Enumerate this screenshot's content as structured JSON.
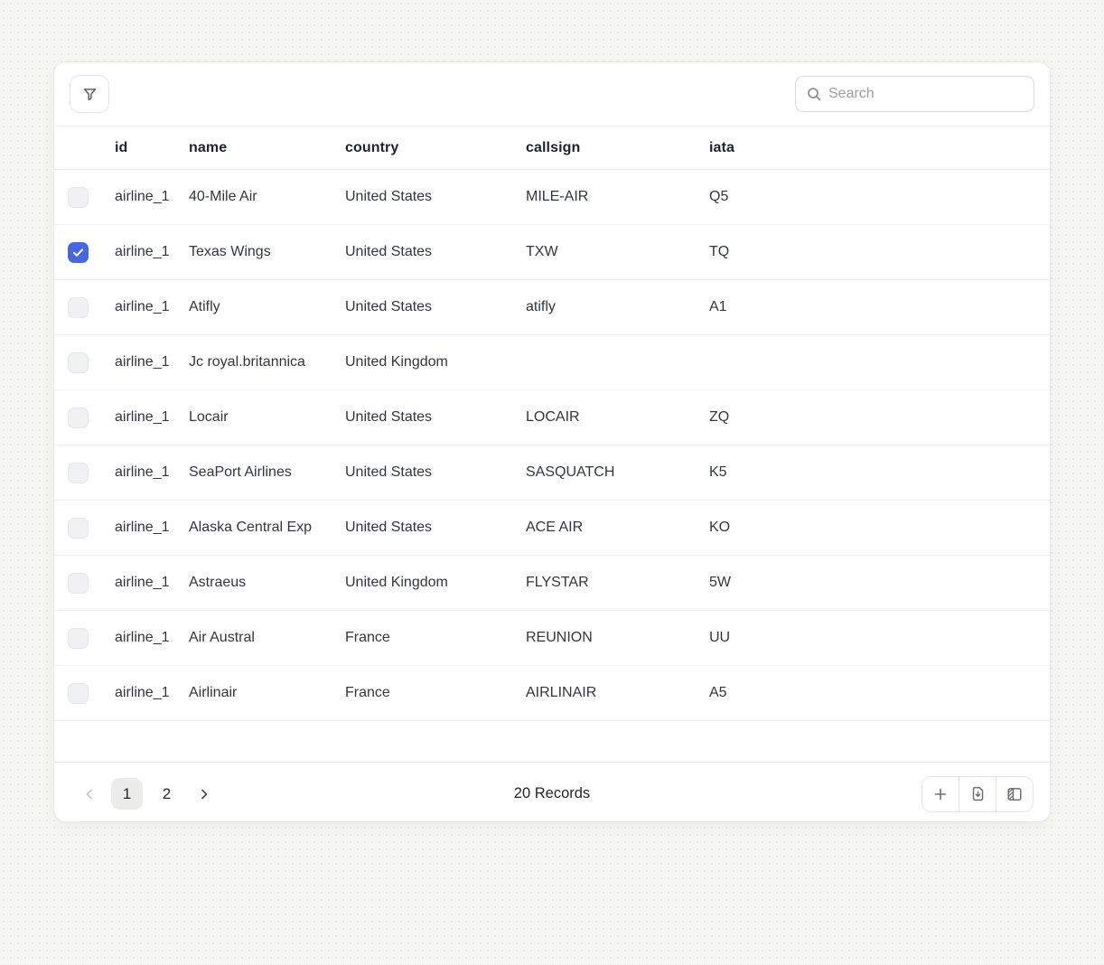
{
  "colors": {
    "accent": "#4567e1",
    "icon_gray": "#6d7177",
    "disabled_gray": "#c7c9cc"
  },
  "toolbar": {
    "filter_button": "filter",
    "search": {
      "placeholder": "Search",
      "value": ""
    }
  },
  "table": {
    "columns": [
      {
        "key": "id",
        "label": "id"
      },
      {
        "key": "name",
        "label": "name"
      },
      {
        "key": "country",
        "label": "country"
      },
      {
        "key": "callsign",
        "label": "callsign"
      },
      {
        "key": "iata",
        "label": "iata"
      }
    ],
    "rows": [
      {
        "checked": false,
        "id": "airline_1",
        "name": "40-Mile Air",
        "country": "United States",
        "callsign": "MILE-AIR",
        "iata": "Q5"
      },
      {
        "checked": true,
        "id": "airline_1",
        "name": "Texas Wings",
        "country": "United States",
        "callsign": "TXW",
        "iata": "TQ"
      },
      {
        "checked": false,
        "id": "airline_1",
        "name": "Atifly",
        "country": "United States",
        "callsign": "atifly",
        "iata": "A1"
      },
      {
        "checked": false,
        "id": "airline_1",
        "name": "Jc royal.britannica",
        "country": "United Kingdom",
        "callsign": "",
        "iata": ""
      },
      {
        "checked": false,
        "id": "airline_1",
        "name": "Locair",
        "country": "United States",
        "callsign": "LOCAIR",
        "iata": "ZQ"
      },
      {
        "checked": false,
        "id": "airline_1",
        "name": "SeaPort Airlines",
        "country": "United States",
        "callsign": "SASQUATCH",
        "iata": "K5"
      },
      {
        "checked": false,
        "id": "airline_1",
        "name": "Alaska Central Exp",
        "country": "United States",
        "callsign": "ACE AIR",
        "iata": "KO"
      },
      {
        "checked": false,
        "id": "airline_1",
        "name": "Astraeus",
        "country": "United Kingdom",
        "callsign": "FLYSTAR",
        "iata": "5W"
      },
      {
        "checked": false,
        "id": "airline_1",
        "name": "Air Austral",
        "country": "France",
        "callsign": "REUNION",
        "iata": "UU"
      },
      {
        "checked": false,
        "id": "airline_1",
        "name": "Airlinair",
        "country": "France",
        "callsign": "AIRLINAIR",
        "iata": "A5"
      }
    ]
  },
  "footer": {
    "pages": [
      "1",
      "2"
    ],
    "current_page": "1",
    "records_label": "20 Records"
  }
}
